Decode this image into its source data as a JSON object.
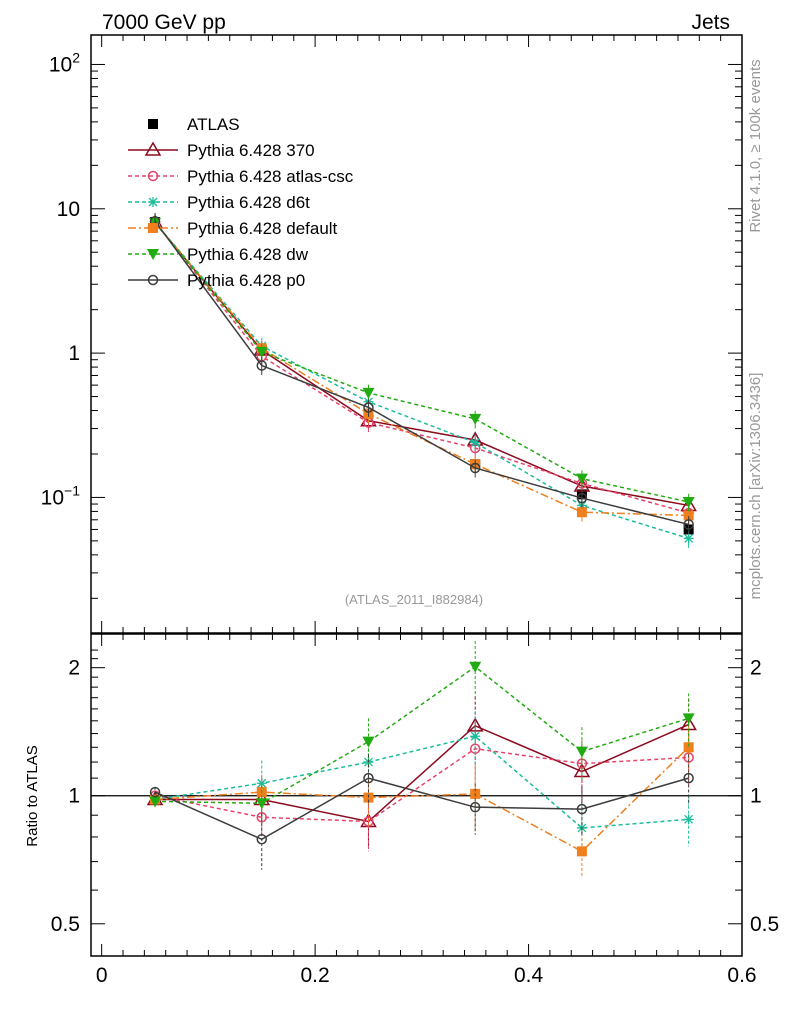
{
  "header": {
    "left": "7000 GeV pp",
    "right": "Jets"
  },
  "side_text": {
    "top": "Rivet 4.1.0, ≥ 100k events",
    "bottom": "mcplots.cern.ch [arXiv:1306.3436]"
  },
  "analysis_label": "(ATLAS_2011_I882984)",
  "chart_data": [
    {
      "type": "line",
      "panel": "main",
      "yscale": "log",
      "xlim": [
        -0.01,
        0.6
      ],
      "ylim": [
        0.0115,
        160
      ],
      "x": [
        0.05,
        0.15,
        0.25,
        0.35,
        0.45,
        0.55
      ],
      "xticks": [
        0,
        0.2,
        0.4,
        0.6
      ],
      "xtick_labels": [
        "0",
        "0.2",
        "0.4",
        "0.6"
      ],
      "yticks": [
        0.1,
        1,
        10,
        100
      ],
      "ytick_labels": [
        {
          "base": "10",
          "exp": "−1"
        },
        {
          "base": "1",
          "exp": ""
        },
        {
          "base": "10",
          "exp": ""
        },
        {
          "base": "10",
          "exp": "2"
        }
      ],
      "series": [
        {
          "name": "ATLAS",
          "color": "#000000",
          "marker": "square",
          "dash": "none",
          "values": [
            8.1,
            1.05,
            0.38,
            0.17,
            0.105,
            0.06
          ]
        },
        {
          "name": "Pythia 6.428 370",
          "color": "#8b0a1e",
          "marker": "triangle-open",
          "dash": "solid",
          "values": [
            8.0,
            1.05,
            0.34,
            0.25,
            0.12,
            0.088
          ]
        },
        {
          "name": "Pythia 6.428 atlas-csc",
          "color": "#e8426a",
          "marker": "circle-open",
          "dash": "4,3",
          "values": [
            8.1,
            0.95,
            0.33,
            0.22,
            0.125,
            0.078
          ]
        },
        {
          "name": "Pythia 6.428 d6t",
          "color": "#1abc9c",
          "marker": "star",
          "dash": "4,3",
          "values": [
            8.0,
            1.12,
            0.46,
            0.24,
            0.088,
            0.052
          ]
        },
        {
          "name": "Pythia 6.428 default",
          "color": "#f07f1e",
          "marker": "square",
          "dash": "8,3,2,3",
          "values": [
            8.0,
            1.08,
            0.38,
            0.17,
            0.079,
            0.075
          ]
        },
        {
          "name": "Pythia 6.428 dw",
          "color": "#22aa11",
          "marker": "triangle-down",
          "dash": "4,3",
          "values": [
            8.0,
            1.02,
            0.53,
            0.35,
            0.135,
            0.093
          ]
        },
        {
          "name": "Pythia 6.428 p0",
          "color": "#3c3c3c",
          "marker": "circle-open",
          "dash": "solid",
          "values": [
            8.2,
            0.82,
            0.42,
            0.16,
            0.099,
            0.065
          ]
        }
      ]
    },
    {
      "type": "line",
      "panel": "ratio",
      "yscale": "log",
      "ylabel": "Ratio to ATLAS",
      "xlim": [
        -0.01,
        0.6
      ],
      "ylim": [
        0.42,
        2.4
      ],
      "x": [
        0.05,
        0.15,
        0.25,
        0.35,
        0.45,
        0.55
      ],
      "xticks": [
        0,
        0.2,
        0.4,
        0.6
      ],
      "xtick_labels": [
        "0",
        "0.2",
        "0.4",
        "0.6"
      ],
      "yticks": [
        0.5,
        1,
        2
      ],
      "ytick_labels": [
        "0.5",
        "1",
        "2"
      ],
      "reference": 1,
      "series": [
        {
          "name": "Pythia 6.428 370",
          "color": "#8b0a1e",
          "marker": "triangle-open",
          "dash": "solid",
          "values": [
            0.98,
            0.98,
            0.87,
            1.46,
            1.14,
            1.47
          ],
          "errors": [
            0.03,
            0.09,
            0.12,
            0.25,
            0.18,
            0.22
          ]
        },
        {
          "name": "Pythia 6.428 atlas-csc",
          "color": "#e8426a",
          "marker": "circle-open",
          "dash": "4,3",
          "values": [
            1.0,
            0.89,
            0.87,
            1.29,
            1.19,
            1.23
          ],
          "errors": [
            0.03,
            0.08,
            0.13,
            0.2,
            0.16,
            0.18
          ]
        },
        {
          "name": "Pythia 6.428 d6t",
          "color": "#1abc9c",
          "marker": "star",
          "dash": "4,3",
          "values": [
            0.98,
            1.07,
            1.2,
            1.38,
            0.84,
            0.88
          ],
          "errors": [
            0.03,
            0.14,
            0.16,
            0.2,
            0.12,
            0.12
          ]
        },
        {
          "name": "Pythia 6.428 default",
          "color": "#f07f1e",
          "marker": "square",
          "dash": "8,3,2,3",
          "values": [
            0.98,
            1.02,
            0.99,
            1.01,
            0.74,
            1.3
          ],
          "errors": [
            0.03,
            0.1,
            0.14,
            0.17,
            0.1,
            0.2
          ]
        },
        {
          "name": "Pythia 6.428 dw",
          "color": "#22aa11",
          "marker": "triangle-down",
          "dash": "4,3",
          "values": [
            0.97,
            0.96,
            1.34,
            2.01,
            1.27,
            1.52
          ],
          "errors": [
            0.03,
            0.1,
            0.18,
            0.3,
            0.18,
            0.22
          ]
        },
        {
          "name": "Pythia 6.428 p0",
          "color": "#3c3c3c",
          "marker": "circle-open",
          "dash": "solid",
          "values": [
            1.02,
            0.79,
            1.1,
            0.94,
            0.93,
            1.1
          ],
          "errors": [
            0.03,
            0.12,
            0.15,
            0.13,
            0.12,
            0.15
          ]
        }
      ]
    }
  ]
}
